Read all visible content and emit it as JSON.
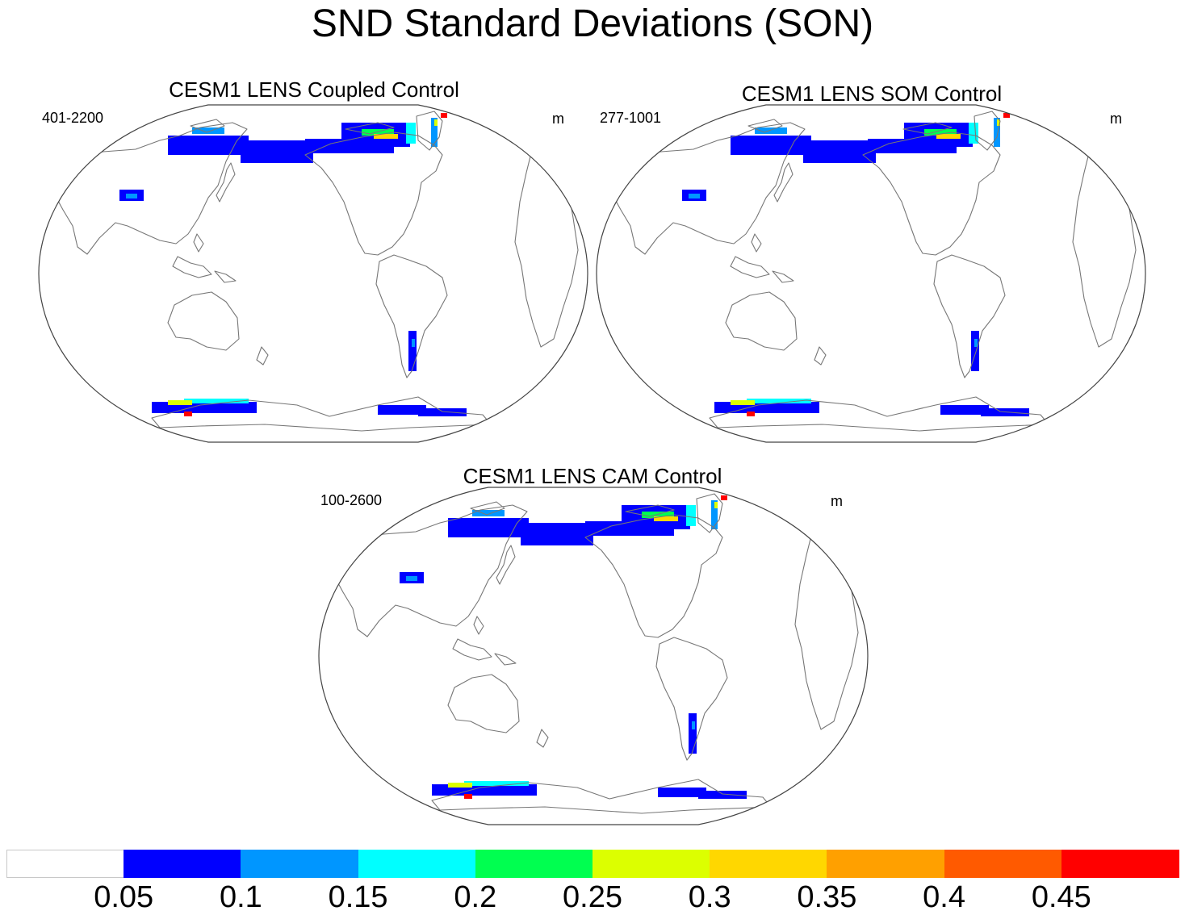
{
  "title": "SND Standard Deviations (SON)",
  "panels": [
    {
      "title": "CESM1 LENS Coupled Control",
      "range": "401-2200",
      "units": "m"
    },
    {
      "title": "CESM1 LENS SOM Control",
      "range": "277-1001",
      "units": "m"
    },
    {
      "title": "CESM1 LENS CAM Control",
      "range": "100-2600",
      "units": "m"
    }
  ],
  "colorbar": {
    "labels": [
      "0.05",
      "0.1",
      "0.15",
      "0.2",
      "0.25",
      "0.3",
      "0.35",
      "0.4",
      "0.45"
    ],
    "colors": [
      "#ffffff",
      "#0000ff",
      "#0096ff",
      "#00ffff",
      "#00ff50",
      "#dcff00",
      "#ffd700",
      "#ffa000",
      "#ff5a00",
      "#ff0000"
    ]
  }
}
